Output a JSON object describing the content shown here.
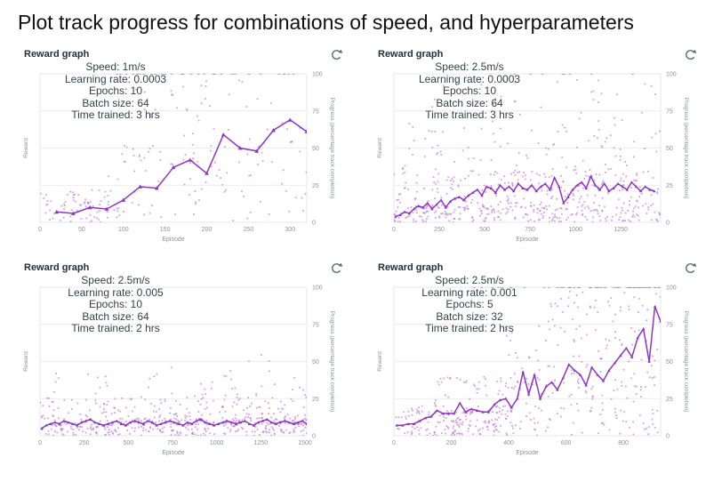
{
  "page": {
    "title": "Plot track progress for combinations of speed, and hyperparameters"
  },
  "colors": {
    "line": "#8e35c6",
    "scatter": "#bb67d8",
    "grid": "#ececec",
    "plot_border": "#e4e5f0",
    "axis_text": "#8a939b",
    "header_text": "#232f3e",
    "refresh_icon": "#5f6b7a",
    "title_text": "#111111"
  },
  "panel_common": {
    "header": "Reward graph",
    "refresh_icon": "refresh-icon",
    "x_axis_label": "Episode",
    "y_left_label": "Reward",
    "y_right_label": "Progress (percentage track completion)",
    "y_ticks": [
      0,
      25,
      50,
      75,
      100
    ],
    "ylim": [
      0,
      100
    ]
  },
  "chart_data": [
    {
      "type": "scatter+line",
      "title": "Reward graph",
      "hyperparameters": [
        "Speed: 1m/s",
        "Learning rate: 0.0003",
        "Epochs: 10",
        "Batch size: 64",
        "Time trained: 3 hrs"
      ],
      "x_ticks": [
        0,
        50,
        100,
        150,
        200,
        250,
        300
      ],
      "x_max": 320,
      "line": {
        "episodes": {
          "start": 20,
          "step": 20
        },
        "progress": [
          7,
          6,
          10,
          9,
          15,
          24,
          23,
          37,
          42,
          33,
          59,
          50,
          48,
          62,
          69,
          61
        ]
      },
      "scatter_bands": [
        [
          0.0,
          0.3,
          0,
          22,
          70
        ],
        [
          0.25,
          1.0,
          0,
          55,
          80
        ],
        [
          0.35,
          1.0,
          40,
          97,
          55
        ]
      ],
      "scatter_top_row": [
        [
          0.28,
          1.0,
          30
        ]
      ],
      "seed": 11
    },
    {
      "type": "scatter+line",
      "title": "Reward graph",
      "hyperparameters": [
        "Speed: 2.5m/s",
        "Learning rate: 0.0003",
        "Epochs: 10",
        "Batch size: 64",
        "Time trained: 3 hrs"
      ],
      "x_ticks": [
        0,
        250,
        500,
        750,
        1000,
        1250
      ],
      "x_max": 1470,
      "line": {
        "episodes": {
          "start": 10,
          "step": 25
        },
        "progress": [
          4,
          5,
          7,
          6,
          9,
          11,
          10,
          13,
          9,
          12,
          15,
          10,
          14,
          16,
          17,
          15,
          18,
          20,
          22,
          18,
          24,
          23,
          20,
          25,
          22,
          24,
          21,
          26,
          23,
          22,
          25,
          21,
          24,
          26,
          22,
          30,
          24,
          13,
          17,
          22,
          25,
          27,
          23,
          31,
          25,
          22,
          26,
          21,
          23,
          26,
          24,
          22,
          27,
          24,
          21,
          24,
          22,
          21
        ]
      },
      "scatter_bands": [
        [
          0.0,
          1.0,
          0,
          12,
          260
        ],
        [
          0.0,
          1.0,
          12,
          35,
          200
        ],
        [
          0.03,
          1.0,
          35,
          70,
          90
        ],
        [
          0.1,
          1.0,
          70,
          98,
          30
        ]
      ],
      "scatter_top_row": [
        [
          0.35,
          1.0,
          8
        ]
      ],
      "seed": 22
    },
    {
      "type": "scatter+line",
      "title": "Reward graph",
      "hyperparameters": [
        "Speed: 2.5m/s",
        "Learning rate: 0.005",
        "Epochs: 10",
        "Batch size: 64",
        "Time trained: 2 hrs"
      ],
      "x_ticks": [
        0,
        250,
        500,
        750,
        1000,
        1250,
        1500
      ],
      "x_max": 1510,
      "line": {
        "episodes": {
          "start": 10,
          "step": 25
        },
        "progress": [
          5,
          7,
          8,
          9,
          8,
          10,
          9,
          8,
          7,
          9,
          10,
          11,
          9,
          8,
          7,
          8,
          9,
          10,
          8,
          7,
          9,
          10,
          9,
          8,
          10,
          9,
          7,
          8,
          9,
          10,
          9,
          8,
          7,
          9,
          8,
          10,
          11,
          9,
          8,
          7,
          8,
          9,
          10,
          9,
          8,
          9,
          10,
          8,
          7,
          9,
          10,
          11,
          9,
          8,
          9,
          10,
          9,
          8,
          9,
          10,
          8
        ]
      },
      "scatter_bands": [
        [
          0.0,
          1.0,
          0,
          12,
          330
        ],
        [
          0.0,
          1.0,
          12,
          26,
          140
        ],
        [
          0.02,
          1.0,
          26,
          42,
          40
        ],
        [
          0.1,
          0.95,
          42,
          55,
          6
        ]
      ],
      "scatter_top_row": [],
      "seed": 33
    },
    {
      "type": "scatter+line",
      "title": "Reward graph",
      "hyperparameters": [
        "Speed: 2.5m/s",
        "Learning rate: 0.001",
        "Epochs: 5",
        "Batch size: 32",
        "Time trained: 2 hrs"
      ],
      "x_ticks": [
        0,
        200,
        400,
        600,
        800
      ],
      "x_max": 930,
      "line": {
        "episodes": {
          "start": 10,
          "step": 20
        },
        "progress": [
          7,
          7,
          8,
          8,
          10,
          12,
          13,
          17,
          15,
          15,
          15,
          22,
          16,
          18,
          17,
          16,
          16,
          21,
          24,
          25,
          19,
          25,
          43,
          28,
          41,
          25,
          33,
          36,
          31,
          39,
          48,
          44,
          41,
          34,
          46,
          41,
          37,
          44,
          49,
          54,
          59,
          53,
          66,
          72,
          50,
          87,
          77
        ]
      },
      "scatter_bands": [
        [
          0.0,
          0.45,
          0,
          20,
          150
        ],
        [
          0.15,
          1.0,
          0,
          40,
          180
        ],
        [
          0.4,
          1.0,
          30,
          75,
          90
        ],
        [
          0.55,
          1.0,
          75,
          98,
          40
        ]
      ],
      "scatter_top_row": [
        [
          0.3,
          0.65,
          14
        ],
        [
          0.65,
          1.0,
          42
        ]
      ],
      "seed": 44
    }
  ]
}
